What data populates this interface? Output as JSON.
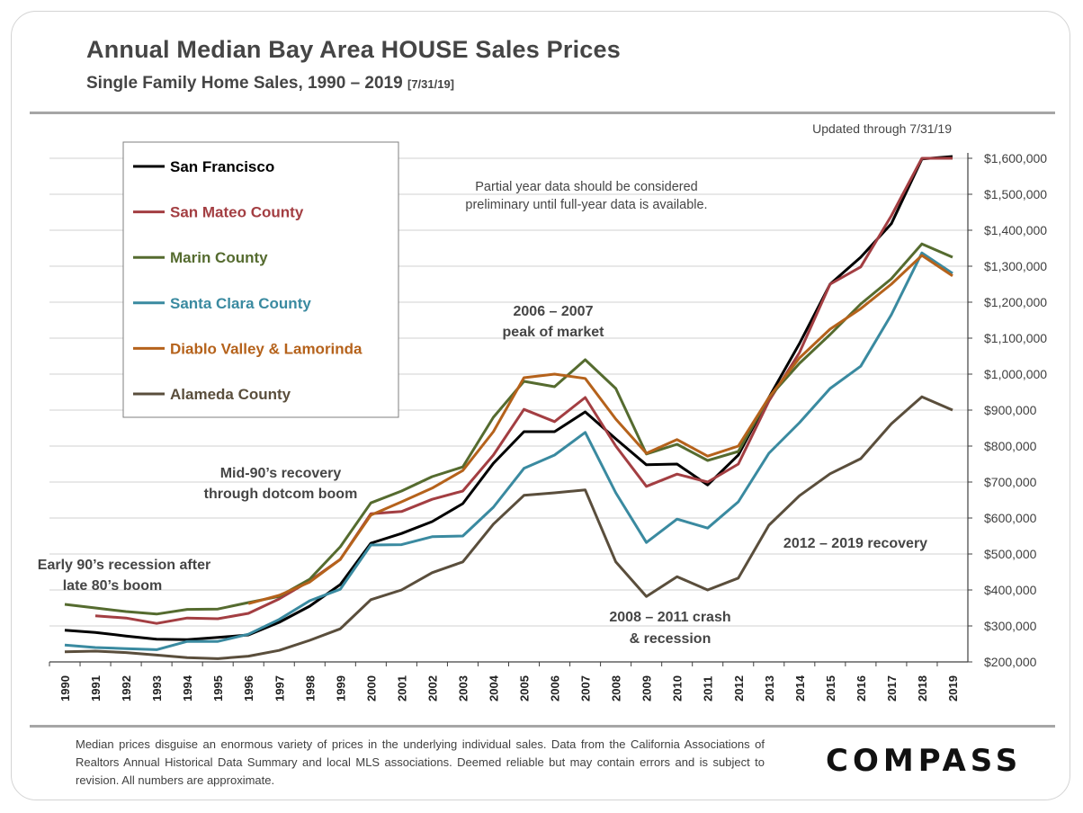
{
  "title": "Annual Median Bay Area HOUSE Sales Prices",
  "subtitle": "Single Family Home Sales, 1990 – 2019",
  "subtitle_date": "[7/31/19]",
  "footnote": "Median prices disguise an enormous variety of prices in the underlying individual sales. Data from the California Associations of Realtors Annual Historical Data Summary and local MLS associations.  Deemed reliable but may contain errors and is subject to revision. All numbers are approximate.",
  "logo": "COMPASS",
  "chart_data": {
    "type": "line",
    "x": [
      1990,
      1991,
      1992,
      1993,
      1994,
      1995,
      1996,
      1997,
      1998,
      1999,
      2000,
      2001,
      2002,
      2003,
      2004,
      2005,
      2006,
      2007,
      2008,
      2009,
      2010,
      2011,
      2012,
      2013,
      2014,
      2015,
      2016,
      2017,
      2018,
      2019
    ],
    "ylim": [
      200000,
      1600000
    ],
    "y_ticks": [
      "$200,000",
      "$300,000",
      "$400,000",
      "$500,000",
      "$600,000",
      "$700,000",
      "$800,000",
      "$900,000",
      "$1,000,000",
      "$1,100,000",
      "$1,200,000",
      "$1,300,000",
      "$1,400,000",
      "$1,500,000",
      "$1,600,000"
    ],
    "grid": "horizontal",
    "legend_position": "top-left",
    "series": [
      {
        "name": "San Francisco",
        "color": "#000000",
        "values": [
          288000,
          282000,
          272000,
          263000,
          262000,
          268000,
          275000,
          310000,
          355000,
          415000,
          530000,
          557000,
          590000,
          640000,
          752000,
          840000,
          840000,
          895000,
          820000,
          748000,
          750000,
          692000,
          775000,
          935000,
          1085000,
          1250000,
          1325000,
          1418000,
          1598000,
          1605000
        ]
      },
      {
        "name": "San Mateo County",
        "color": "#A33E42",
        "values": [
          null,
          328000,
          322000,
          307000,
          322000,
          320000,
          335000,
          375000,
          425000,
          485000,
          612000,
          618000,
          652000,
          675000,
          775000,
          902000,
          868000,
          935000,
          800000,
          688000,
          722000,
          700000,
          750000,
          925000,
          1060000,
          1250000,
          1298000,
          1440000,
          1600000,
          1600000
        ]
      },
      {
        "name": "Marin County",
        "color": "#556B2F",
        "values": [
          360000,
          350000,
          340000,
          333000,
          346000,
          347000,
          365000,
          382000,
          430000,
          520000,
          642000,
          675000,
          715000,
          742000,
          880000,
          980000,
          965000,
          1040000,
          960000,
          778000,
          805000,
          760000,
          785000,
          935000,
          1030000,
          1110000,
          1195000,
          1265000,
          1362000,
          1325000
        ]
      },
      {
        "name": "Santa Clara County",
        "color": "#3A8AA0",
        "values": [
          247000,
          240000,
          237000,
          234000,
          257000,
          257000,
          277000,
          318000,
          370000,
          402000,
          525000,
          526000,
          548000,
          550000,
          630000,
          738000,
          775000,
          838000,
          670000,
          532000,
          597000,
          572000,
          645000,
          780000,
          865000,
          960000,
          1022000,
          1165000,
          1337000,
          1280000
        ]
      },
      {
        "name": "Diablo Valley & Lamorinda",
        "color": "#B5621B",
        "values": [
          null,
          null,
          null,
          null,
          null,
          null,
          362000,
          385000,
          422000,
          485000,
          608000,
          645000,
          683000,
          732000,
          840000,
          990000,
          1000000,
          988000,
          875000,
          780000,
          818000,
          772000,
          800000,
          935000,
          1045000,
          1125000,
          1182000,
          1250000,
          1330000,
          1273000
        ]
      },
      {
        "name": "Alameda County",
        "color": "#5A4E3C",
        "values": [
          228000,
          230000,
          226000,
          219000,
          212000,
          209000,
          216000,
          232000,
          260000,
          292000,
          373000,
          400000,
          448000,
          478000,
          583000,
          663000,
          670000,
          678000,
          478000,
          382000,
          437000,
          400000,
          433000,
          580000,
          662000,
          723000,
          765000,
          862000,
          937000,
          900000
        ]
      }
    ],
    "annotations": [
      {
        "text": "Updated through 7/31/19"
      },
      {
        "text": "Partial year data should be considered",
        "text2": "preliminary until full-year data is available."
      },
      {
        "text": "2006 – 2007",
        "text2": "peak of market"
      },
      {
        "text": "Mid-90’s recovery",
        "text2": "through dotcom boom"
      },
      {
        "text": "Early 90’s recession after",
        "text2": "late 80’s boom"
      },
      {
        "text": "2008 – 2011 crash",
        "text2": "& recession"
      },
      {
        "text": "2012 – 2019 recovery"
      }
    ]
  }
}
